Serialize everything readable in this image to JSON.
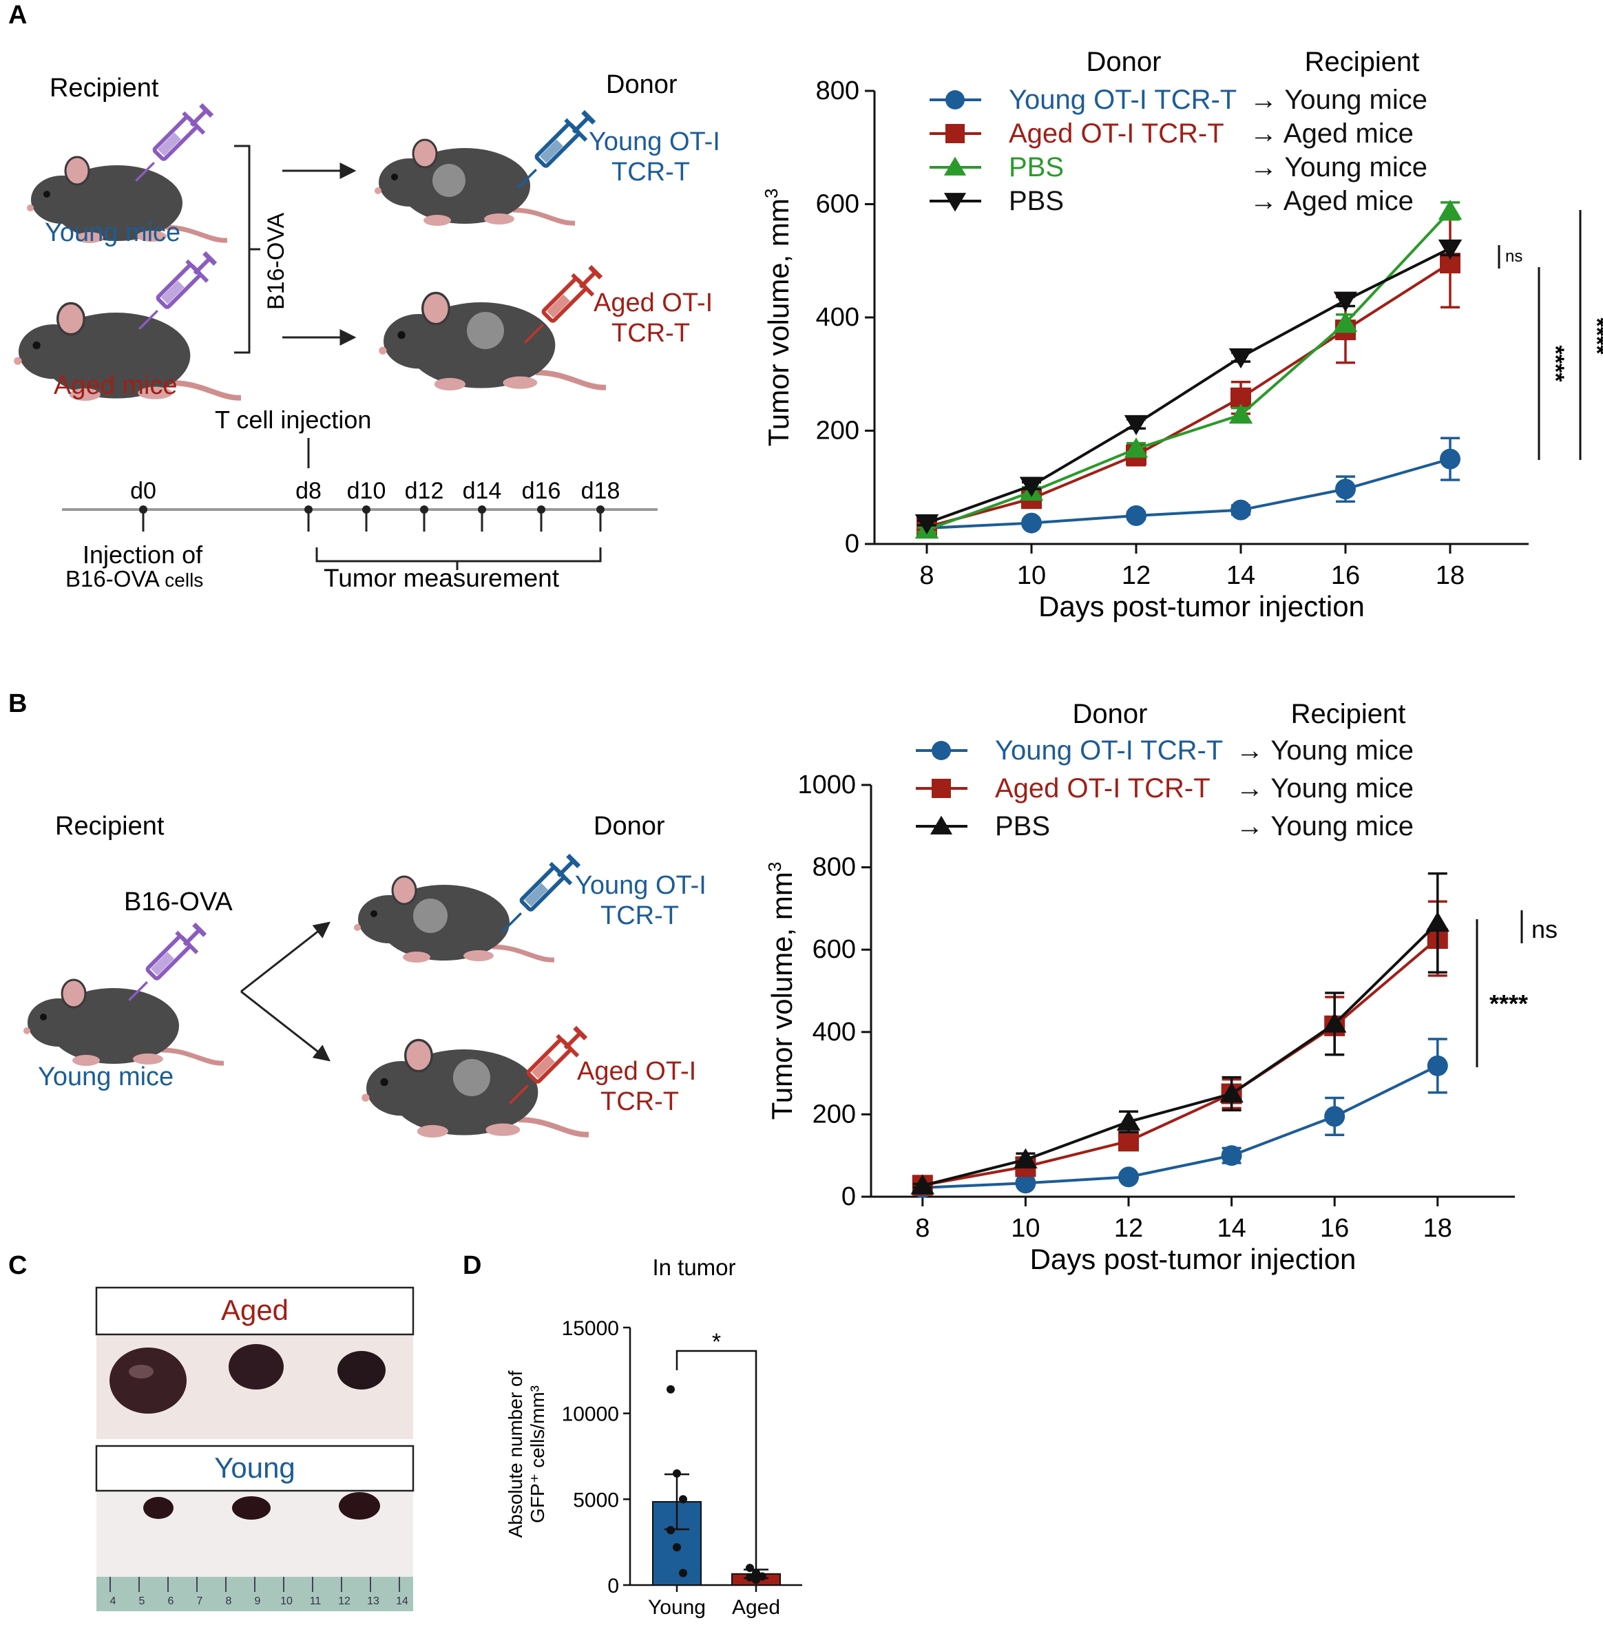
{
  "panels": {
    "a": "A",
    "b": "B",
    "c": "C",
    "d": "D"
  },
  "colors": {
    "young": "#1c5c97",
    "aged": "#a01f17",
    "pbs_green": "#2a9a2a",
    "black": "#111111",
    "syringe_purple": "#8a5cbf",
    "mouse": "#4a4a4a",
    "mouse_ear": "#d9a3a3",
    "tumor": "#8e8e8e"
  },
  "schematic_a": {
    "recipient": "Recipient",
    "donor": "Donor",
    "young_mice": "Young mice",
    "aged_mice": "Aged mice",
    "b16": "B16-OVA",
    "young_donor_l1": "Young OT-I",
    "young_donor_l2": "TCR-T",
    "aged_donor_l1": "Aged OT-I",
    "aged_donor_l2": "TCR-T",
    "tcell_injection": "T cell injection",
    "days": [
      "d0",
      "d8",
      "d10",
      "d12",
      "d14",
      "d16",
      "d18"
    ],
    "inj_l1": "Injection of",
    "inj_l2": "B16-OVA ",
    "inj_l2_small": "cells",
    "tumor_measurement": "Tumor measurement"
  },
  "schematic_b": {
    "recipient": "Recipient",
    "donor": "Donor",
    "b16": "B16-OVA",
    "young_mice": "Young mice",
    "young_donor_l1": "Young OT-I",
    "young_donor_l2": "TCR-T",
    "aged_donor_l1": "Aged OT-I",
    "aged_donor_l2": "TCR-T"
  },
  "photo_c": {
    "aged": "Aged",
    "young": "Young",
    "ruler_ticks": [
      "4",
      "5",
      "6",
      "7",
      "8",
      "9",
      "10",
      "11",
      "12",
      "13",
      "14"
    ]
  },
  "chart_data": [
    {
      "id": "A",
      "type": "line",
      "title": "",
      "xlabel": "Days post-tumor injection",
      "ylabel": "Tumor volume, mm",
      "ylabel_sup": "3",
      "x": [
        8,
        10,
        12,
        14,
        16,
        18
      ],
      "xlim": [
        7,
        19.5
      ],
      "ylim": [
        0,
        800
      ],
      "yticks": [
        0,
        200,
        400,
        600,
        800
      ],
      "xticks": [
        8,
        10,
        12,
        14,
        16,
        18
      ],
      "legend_headers": {
        "donor": "Donor",
        "recipient": "Recipient"
      },
      "series": [
        {
          "name": "Young OT-I TCR-T",
          "recipient": "→ Young mice",
          "marker": "circle",
          "color": "#1c5c97",
          "values": [
            28,
            37,
            50,
            60,
            97,
            150
          ],
          "err": [
            4,
            5,
            6,
            8,
            22,
            37
          ]
        },
        {
          "name": "Aged OT-I TCR-T",
          "recipient": "→ Aged mice",
          "marker": "square",
          "color": "#a01f17",
          "values": [
            30,
            80,
            157,
            258,
            378,
            496
          ],
          "err": [
            5,
            15,
            18,
            28,
            58,
            78
          ]
        },
        {
          "name": "PBS",
          "recipient": "→ Young mice",
          "marker": "triangle-up",
          "color": "#2a9a2a",
          "values": [
            25,
            92,
            168,
            228,
            390,
            588
          ],
          "err": [
            4,
            8,
            10,
            12,
            15,
            15
          ]
        },
        {
          "name": "PBS",
          "recipient": "→ Aged mice",
          "marker": "triangle-down",
          "color": "#111111",
          "values": [
            37,
            103,
            212,
            330,
            430,
            522
          ],
          "err": [
            4,
            6,
            8,
            8,
            10,
            12
          ]
        }
      ],
      "annotations": [
        "ns",
        "****",
        "****"
      ]
    },
    {
      "id": "B",
      "type": "line",
      "title": "",
      "xlabel": "Days post-tumor injection",
      "ylabel": "Tumor volume, mm",
      "ylabel_sup": "3",
      "x": [
        8,
        10,
        12,
        14,
        16,
        18
      ],
      "xlim": [
        7,
        19.5
      ],
      "ylim": [
        0,
        1000
      ],
      "yticks": [
        0,
        200,
        400,
        600,
        800,
        1000
      ],
      "xticks": [
        8,
        10,
        12,
        14,
        16,
        18
      ],
      "legend_headers": {
        "donor": "Donor",
        "recipient": "Recipient"
      },
      "series": [
        {
          "name": "Young OT-I TCR-T",
          "recipient": "→ Young mice",
          "marker": "circle",
          "color": "#1c5c97",
          "values": [
            22,
            33,
            48,
            100,
            195,
            318
          ],
          "err": [
            3,
            5,
            6,
            18,
            45,
            65
          ]
        },
        {
          "name": "Aged OT-I TCR-T",
          "recipient": "→ Young mice",
          "marker": "square",
          "color": "#a01f17",
          "values": [
            28,
            73,
            135,
            250,
            415,
            627
          ],
          "err": [
            4,
            15,
            20,
            35,
            70,
            90
          ]
        },
        {
          "name": "PBS",
          "recipient": "→ Young mice",
          "marker": "triangle-up",
          "color": "#111111",
          "values": [
            27,
            90,
            182,
            250,
            420,
            665
          ],
          "err": [
            4,
            15,
            25,
            40,
            75,
            120
          ]
        }
      ],
      "annotations": [
        "ns",
        "****"
      ]
    },
    {
      "id": "D",
      "type": "bar",
      "title": "In tumor",
      "xlabel": "",
      "ylabel_l1": "Absolute number of",
      "ylabel_l2": "GFP⁺ cells/mm³",
      "categories": [
        "Young",
        "Aged"
      ],
      "values": [
        4850,
        650
      ],
      "err": [
        1600,
        250
      ],
      "points": [
        [
          11400,
          6500,
          5000,
          3200,
          2200,
          700
        ],
        [
          1000,
          700,
          500,
          450,
          300
        ]
      ],
      "ylim": [
        0,
        15000
      ],
      "yticks": [
        0,
        5000,
        10000,
        15000
      ],
      "annotations": [
        "*"
      ]
    }
  ]
}
